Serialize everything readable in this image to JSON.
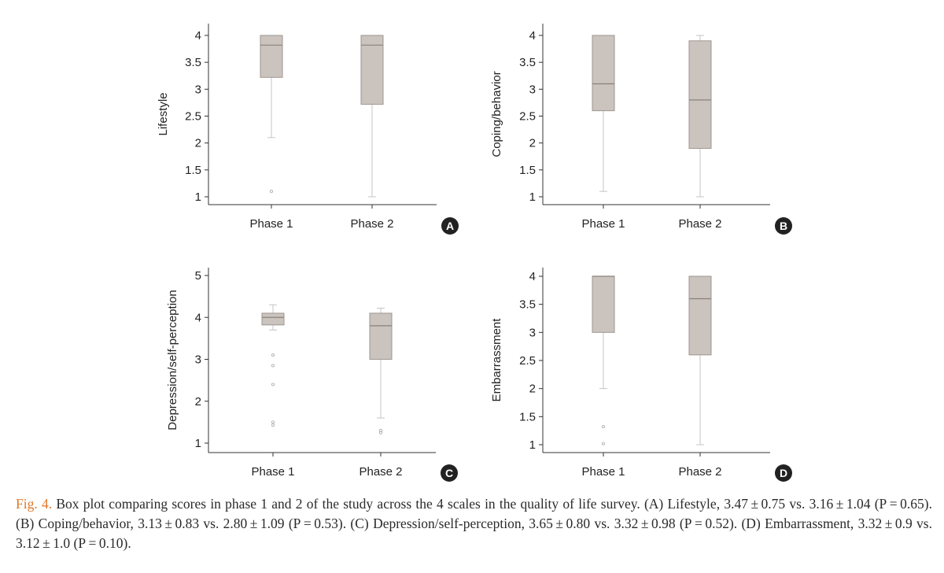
{
  "chart_data": [
    {
      "type": "box",
      "panel_label": "A",
      "title": "",
      "ylabel": "Lifestyle",
      "xlabel": "",
      "ylim": [
        0.9,
        4.1
      ],
      "yticks": [
        1,
        1.5,
        2,
        2.5,
        3,
        3.5,
        4
      ],
      "ytick_labels": [
        "1",
        "1.5",
        "2",
        "2.5",
        "3",
        "3.5",
        "4"
      ],
      "categories": [
        "Phase 1",
        "Phase 2"
      ],
      "boxes": [
        {
          "min": 2.1,
          "q1": 3.22,
          "median": 3.82,
          "q3": 4.0,
          "max": 4.0,
          "outliers": [
            1.1
          ]
        },
        {
          "min": 1.0,
          "q1": 2.72,
          "median": 3.82,
          "q3": 4.0,
          "max": 4.0,
          "outliers": []
        }
      ]
    },
    {
      "type": "box",
      "panel_label": "B",
      "title": "",
      "ylabel": "Coping/behavior",
      "xlabel": "",
      "ylim": [
        0.9,
        4.1
      ],
      "yticks": [
        1,
        1.5,
        2,
        2.5,
        3,
        3.5,
        4
      ],
      "ytick_labels": [
        "1",
        "1.5",
        "2",
        "2.5",
        "3",
        "3.5",
        "4"
      ],
      "categories": [
        "Phase 1",
        "Phase 2"
      ],
      "boxes": [
        {
          "min": 1.1,
          "q1": 2.6,
          "median": 3.1,
          "q3": 4.0,
          "max": 4.0,
          "outliers": []
        },
        {
          "min": 1.0,
          "q1": 1.9,
          "median": 2.8,
          "q3": 3.9,
          "max": 4.0,
          "outliers": []
        }
      ]
    },
    {
      "type": "box",
      "panel_label": "C",
      "title": "",
      "ylabel": "Depression/self-perception",
      "xlabel": "",
      "ylim": [
        0.8,
        5.2
      ],
      "yticks": [
        1,
        2,
        3,
        4,
        5
      ],
      "ytick_labels": [
        "1",
        "2",
        "3",
        "4",
        "5"
      ],
      "categories": [
        "Phase 1",
        "Phase 2"
      ],
      "boxes": [
        {
          "min": 3.7,
          "q1": 3.82,
          "median": 4.0,
          "q3": 4.1,
          "max": 4.3,
          "outliers": [
            3.1,
            2.85,
            2.4,
            1.5,
            1.43
          ]
        },
        {
          "min": 1.6,
          "q1": 3.0,
          "median": 3.8,
          "q3": 4.1,
          "max": 4.22,
          "outliers": [
            1.3,
            1.25
          ]
        }
      ]
    },
    {
      "type": "box",
      "panel_label": "D",
      "title": "",
      "ylabel": "Embarrassment",
      "xlabel": "",
      "ylim": [
        0.9,
        4.1
      ],
      "yticks": [
        1,
        1.5,
        2,
        2.5,
        3,
        3.5,
        4
      ],
      "ytick_labels": [
        "1",
        "1.5",
        "2",
        "2.5",
        "3",
        "3.5",
        "4"
      ],
      "categories": [
        "Phase 1",
        "Phase 2"
      ],
      "boxes": [
        {
          "min": 2.0,
          "q1": 3.0,
          "median": 4.0,
          "q3": 4.0,
          "max": 4.0,
          "outliers": [
            1.32,
            1.02
          ]
        },
        {
          "min": 1.0,
          "q1": 2.6,
          "median": 3.6,
          "q3": 4.0,
          "max": 4.0,
          "outliers": []
        }
      ]
    }
  ],
  "colors": {
    "box_fill": "#cbc3bd",
    "box_stroke": "#9e9691",
    "median_line": "#8a817b",
    "whisker": "#c4c4c4",
    "axis": "#333333",
    "badge": "#222222",
    "caption_label": "#e0782a"
  },
  "caption": {
    "label": "Fig. 4.",
    "text": " Box plot comparing scores in phase 1 and 2 of the study across the 4 scales in the quality of life survey. (A) Lifestyle, 3.47 ± 0.75 vs. 3.16 ± 1.04 (P = 0.65). (B) Coping/behavior, 3.13 ± 0.83 vs. 2.80 ± 1.09 (P = 0.53). (C) Depression/self-perception, 3.65 ± 0.80 vs. 3.32 ± 0.98 (P = 0.52). (D) Embarrassment, 3.32 ± 0.9 vs. 3.12 ± 1.0 (P = 0.10)."
  }
}
